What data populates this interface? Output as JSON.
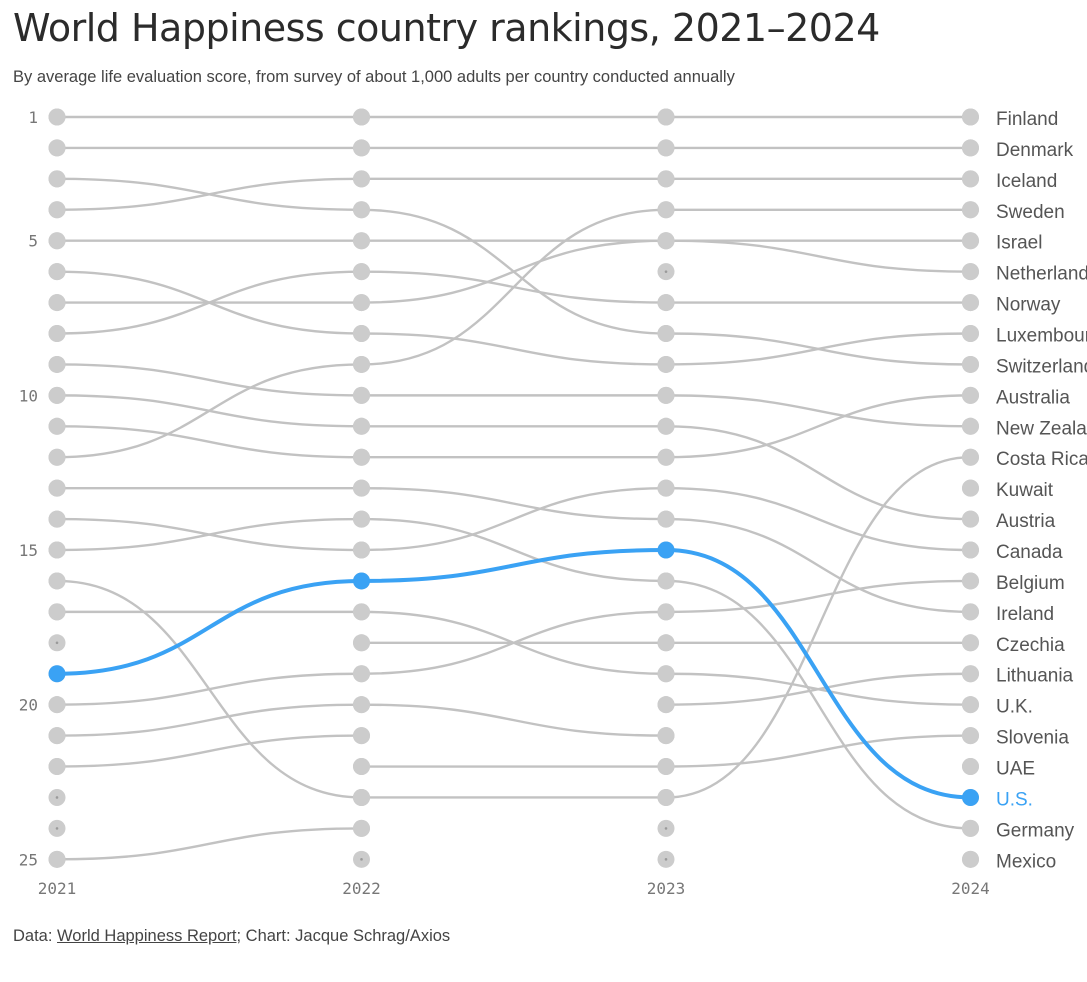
{
  "title": "World Happiness country rankings, 2021–2024",
  "subtitle": "By average life evaluation score, from survey of about 1,000 adults per country conducted annually",
  "source": {
    "prefix": "Data: ",
    "link_text": "World Happiness Report",
    "suffix": "; Chart: Jacque Schrag/Axios"
  },
  "colors": {
    "line": "#c2c2c2",
    "dot": "#cccccc",
    "highlight": "#3aa2f4",
    "tick_text": "#777777",
    "country_text": "#555555"
  },
  "chart_data": {
    "type": "line",
    "chart_kind": "bump chart (rank over time)",
    "x": [
      "2021",
      "2022",
      "2023",
      "2024"
    ],
    "y_ticks": [
      "1",
      "5",
      "10",
      "15",
      "20",
      "25"
    ],
    "y_tick_values": [
      1,
      5,
      10,
      15,
      20,
      25
    ],
    "ylim": [
      1,
      25
    ],
    "y_inverted": true,
    "max_rank": 25,
    "highlight": "U.S.",
    "series": [
      {
        "name": "Finland",
        "ranks": [
          1,
          1,
          1,
          1
        ]
      },
      {
        "name": "Denmark",
        "ranks": [
          2,
          2,
          2,
          2
        ]
      },
      {
        "name": "Iceland",
        "ranks": [
          4,
          3,
          3,
          3
        ]
      },
      {
        "name": "Sweden",
        "ranks": [
          12,
          9,
          4,
          4
        ]
      },
      {
        "name": "Israel",
        "ranks": [
          5,
          5,
          5,
          5
        ]
      },
      {
        "name": "Netherlands",
        "ranks": [
          7,
          7,
          5,
          6
        ]
      },
      {
        "name": "Norway",
        "ranks": [
          8,
          6,
          7,
          7
        ]
      },
      {
        "name": "Luxembourg",
        "ranks": [
          6,
          8,
          9,
          8
        ]
      },
      {
        "name": "Switzerland",
        "ranks": [
          3,
          4,
          8,
          9
        ]
      },
      {
        "name": "Australia",
        "ranks": [
          11,
          12,
          12,
          10
        ]
      },
      {
        "name": "New Zealand",
        "ranks": [
          9,
          10,
          10,
          11
        ]
      },
      {
        "name": "Costa Rica",
        "ranks": [
          null,
          23,
          23,
          12
        ]
      },
      {
        "name": "Kuwait",
        "ranks": [
          null,
          null,
          null,
          13
        ]
      },
      {
        "name": "Austria",
        "ranks": [
          10,
          11,
          11,
          14
        ]
      },
      {
        "name": "Canada",
        "ranks": [
          14,
          15,
          13,
          15
        ]
      },
      {
        "name": "Belgium",
        "ranks": [
          20,
          19,
          17,
          16
        ]
      },
      {
        "name": "Ireland",
        "ranks": [
          13,
          13,
          14,
          17
        ]
      },
      {
        "name": "Czechia",
        "ranks": [
          null,
          18,
          18,
          18
        ]
      },
      {
        "name": "Lithuania",
        "ranks": [
          null,
          null,
          20,
          19
        ]
      },
      {
        "name": "U.K.",
        "ranks": [
          17,
          17,
          19,
          20
        ]
      },
      {
        "name": "Slovenia",
        "ranks": [
          null,
          22,
          22,
          21
        ]
      },
      {
        "name": "UAE",
        "ranks": [
          null,
          null,
          null,
          22
        ]
      },
      {
        "name": "U.S.",
        "ranks": [
          19,
          16,
          15,
          23
        ]
      },
      {
        "name": "Germany",
        "ranks": [
          15,
          14,
          16,
          24
        ]
      },
      {
        "name": "Mexico",
        "ranks": [
          null,
          null,
          null,
          25
        ]
      }
    ],
    "partial_series": [
      {
        "ranks": [
          21,
          20,
          21,
          null
        ]
      },
      {
        "ranks": [
          22,
          21,
          null,
          null
        ]
      },
      {
        "ranks": [
          16,
          23,
          null,
          null
        ]
      },
      {
        "ranks": [
          25,
          24,
          null,
          null
        ]
      }
    ]
  }
}
